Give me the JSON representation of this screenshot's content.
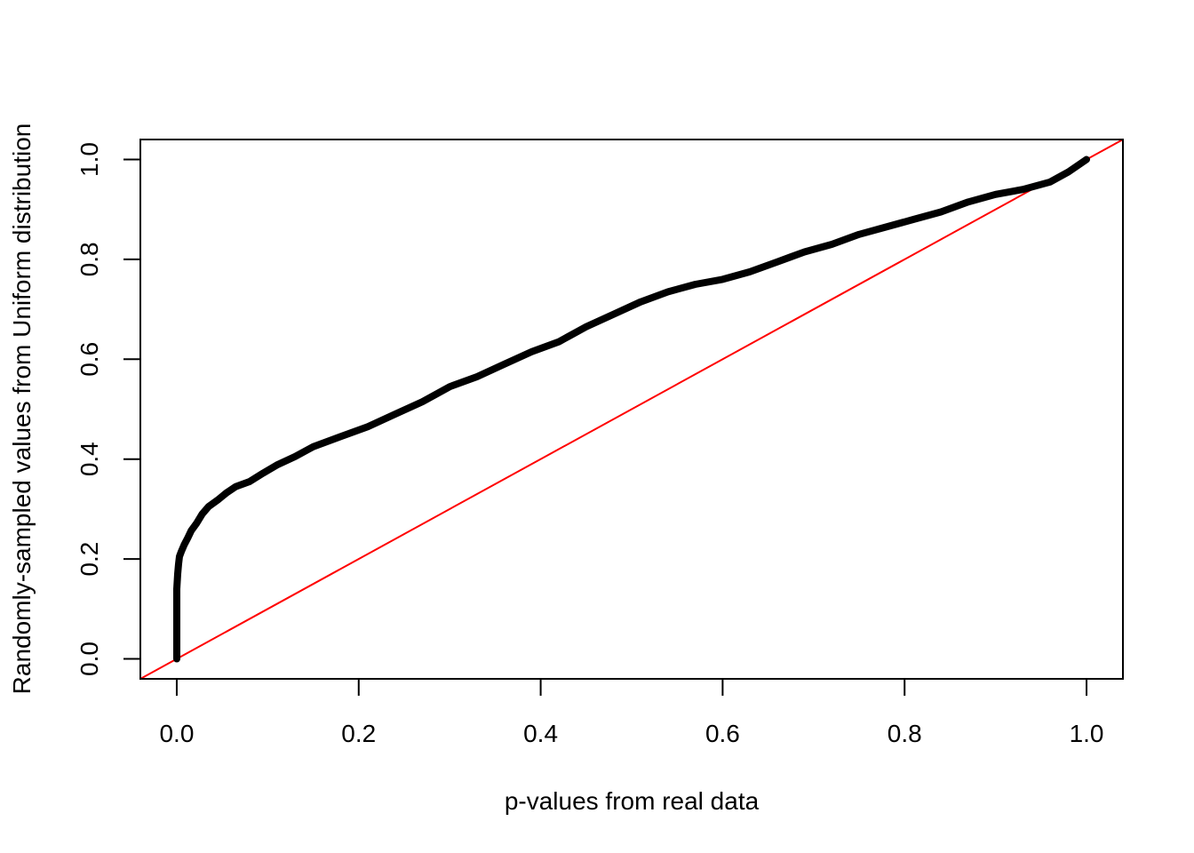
{
  "chart_data": {
    "type": "scatter",
    "title": "",
    "xlabel": "p-values from real data",
    "ylabel": "Randomly-sampled values from Uniform distribution",
    "xlim": [
      -0.04,
      1.04
    ],
    "ylim": [
      -0.04,
      1.04
    ],
    "x_ticks": [
      0.0,
      0.2,
      0.4,
      0.6,
      0.8,
      1.0
    ],
    "x_tick_labels": [
      "0.0",
      "0.2",
      "0.4",
      "0.6",
      "0.8",
      "1.0"
    ],
    "y_ticks": [
      0.0,
      0.2,
      0.4,
      0.6,
      0.8,
      1.0
    ],
    "y_tick_labels": [
      "0.0",
      "0.2",
      "0.4",
      "0.6",
      "0.8",
      "1.0"
    ],
    "grid": false,
    "series": [
      {
        "color": "#000000",
        "points": [
          [
            0.0,
            0.0
          ],
          [
            0.0,
            0.02
          ],
          [
            0.0,
            0.05
          ],
          [
            0.0,
            0.08
          ],
          [
            0.0,
            0.11
          ],
          [
            0.0,
            0.14
          ],
          [
            0.001,
            0.17
          ],
          [
            0.002,
            0.19
          ],
          [
            0.003,
            0.205
          ],
          [
            0.005,
            0.215
          ],
          [
            0.008,
            0.228
          ],
          [
            0.012,
            0.242
          ],
          [
            0.016,
            0.257
          ],
          [
            0.022,
            0.272
          ],
          [
            0.028,
            0.29
          ],
          [
            0.035,
            0.305
          ],
          [
            0.045,
            0.318
          ],
          [
            0.055,
            0.333
          ],
          [
            0.065,
            0.345
          ],
          [
            0.08,
            0.355
          ],
          [
            0.095,
            0.372
          ],
          [
            0.11,
            0.388
          ],
          [
            0.13,
            0.405
          ],
          [
            0.15,
            0.425
          ],
          [
            0.18,
            0.445
          ],
          [
            0.21,
            0.465
          ],
          [
            0.24,
            0.49
          ],
          [
            0.27,
            0.515
          ],
          [
            0.3,
            0.545
          ],
          [
            0.33,
            0.565
          ],
          [
            0.36,
            0.59
          ],
          [
            0.39,
            0.615
          ],
          [
            0.42,
            0.635
          ],
          [
            0.45,
            0.665
          ],
          [
            0.48,
            0.69
          ],
          [
            0.51,
            0.715
          ],
          [
            0.54,
            0.735
          ],
          [
            0.57,
            0.75
          ],
          [
            0.6,
            0.76
          ],
          [
            0.63,
            0.775
          ],
          [
            0.66,
            0.795
          ],
          [
            0.69,
            0.815
          ],
          [
            0.72,
            0.83
          ],
          [
            0.75,
            0.85
          ],
          [
            0.78,
            0.865
          ],
          [
            0.81,
            0.88
          ],
          [
            0.84,
            0.895
          ],
          [
            0.87,
            0.915
          ],
          [
            0.9,
            0.93
          ],
          [
            0.93,
            0.94
          ],
          [
            0.96,
            0.955
          ],
          [
            0.98,
            0.975
          ],
          [
            1.0,
            1.0
          ]
        ]
      }
    ],
    "reference_line": {
      "type": "identity",
      "color": "#ff0000"
    }
  }
}
